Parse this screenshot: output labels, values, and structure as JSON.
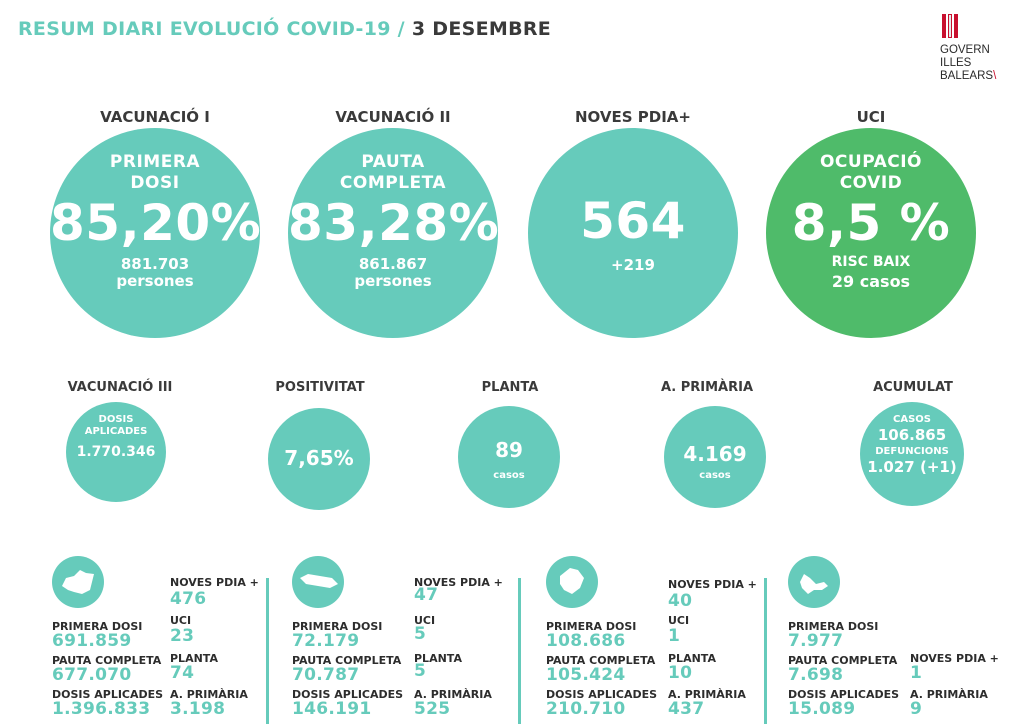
{
  "header": {
    "title": "RESUM DIARI EVOLUCIÓ COVID-19 /",
    "date": "3 DESEMBRE",
    "logo_lines": [
      "GOVERN",
      "ILLES",
      "BALEARS"
    ]
  },
  "top": [
    {
      "heading": "VACUNACIÓ I",
      "label1": "PRIMERA",
      "label2": "DOSI",
      "value": "85,20%",
      "sub1": "881.703",
      "sub2": "persones"
    },
    {
      "heading": "VACUNACIÓ II",
      "label1": "PAUTA",
      "label2": "COMPLETA",
      "value": "83,28%",
      "sub1": "861.867",
      "sub2": "persones"
    },
    {
      "heading": "NOVES PDIA+",
      "value": "564",
      "sub1": "+219"
    },
    {
      "heading": "UCI",
      "label1": "OCUPACIÓ",
      "label2": "COVID",
      "value": "8,5 %",
      "sub1": "RISC BAIX",
      "sub2": "29 casos"
    }
  ],
  "middle": [
    {
      "heading": "VACUNACIÓ III",
      "label1": "DOSIS",
      "label2": "APLICADES",
      "value": "1.770.346"
    },
    {
      "heading": "POSITIVITAT",
      "value": "7,65%"
    },
    {
      "heading": "PLANTA",
      "value": "89",
      "caption": "casos"
    },
    {
      "heading": "A. PRIMÀRIA",
      "value": "4.169",
      "caption": "casos"
    },
    {
      "heading": "ACUMULAT",
      "label1": "CASOS",
      "value": "106.865",
      "label2": "DEFUNCIONS",
      "value2": "1.027 (+1)"
    }
  ],
  "islands": [
    {
      "icon": "mallorca-icon",
      "primera_dosi_label": "PRIMERA DOSI",
      "primera_dosi": "691.859",
      "pauta_label": "PAUTA COMPLETA",
      "pauta": "677.070",
      "dosis_label": "DOSIS APLICADES",
      "dosis": "1.396.833",
      "pdia_label": "NOVES PDIA +",
      "pdia": "476",
      "uci_label": "UCI",
      "uci": "23",
      "planta_label": "PLANTA",
      "planta": "74",
      "primaria_label": "A. PRIMÀRIA",
      "primaria": "3.198"
    },
    {
      "icon": "menorca-icon",
      "primera_dosi_label": "PRIMERA DOSI",
      "primera_dosi": "72.179",
      "pauta_label": "PAUTA COMPLETA",
      "pauta": "70.787",
      "dosis_label": "DOSIS APLICADES",
      "dosis": "146.191",
      "pdia_label": "NOVES PDIA +",
      "pdia": "47",
      "uci_label": "UCI",
      "uci": "5",
      "planta_label": "PLANTA",
      "planta": "5",
      "primaria_label": "A. PRIMÀRIA",
      "primaria": "525"
    },
    {
      "icon": "eivissa-icon",
      "primera_dosi_label": "PRIMERA DOSI",
      "primera_dosi": "108.686",
      "pauta_label": "PAUTA COMPLETA",
      "pauta": "105.424",
      "dosis_label": "DOSIS APLICADES",
      "dosis": "210.710",
      "pdia_label": "NOVES PDIA +",
      "pdia": "40",
      "uci_label": "UCI",
      "uci": "1",
      "planta_label": "PLANTA",
      "planta": "10",
      "primaria_label": "A. PRIMÀRIA",
      "primaria": "437"
    },
    {
      "icon": "formentera-icon",
      "primera_dosi_label": "PRIMERA DOSI",
      "primera_dosi": "7.977",
      "pauta_label": "PAUTA COMPLETA",
      "pauta": "7.698",
      "dosis_label": "DOSIS APLICADES",
      "dosis": "15.089",
      "pdia_label": "NOVES PDIA +",
      "pdia": "1",
      "primaria_label": "A. PRIMÀRIA",
      "primaria": "9"
    }
  ],
  "colors": {
    "teal": "#66cbbb",
    "green": "#4fbb6a",
    "text": "#3a3a3a",
    "logo_red": "#c8102e"
  }
}
